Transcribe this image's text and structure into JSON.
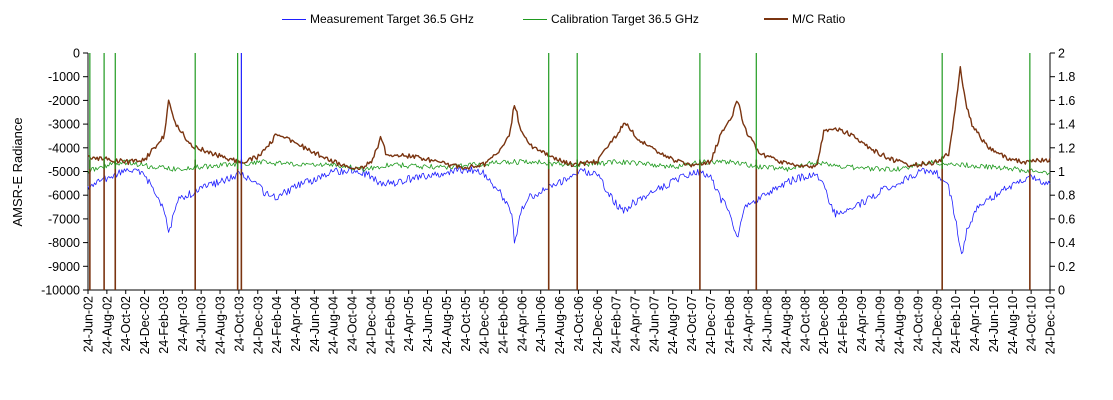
{
  "chart_data": {
    "type": "line",
    "title": "",
    "xlabel": "",
    "ylabel": "AMSR-E Radiance",
    "y2label": "",
    "ylim": [
      -10000,
      0
    ],
    "yticks": [
      0,
      -1000,
      -2000,
      -3000,
      -4000,
      -5000,
      -6000,
      -7000,
      -8000,
      -9000,
      -10000
    ],
    "ytick_labels": [
      "0",
      "-1000",
      "-2000",
      "-3000",
      "-4000",
      "-5000",
      "-6000",
      "-7000",
      "-8000",
      "-9000",
      "-10000"
    ],
    "y2lim": [
      0,
      2
    ],
    "y2ticks": [
      2,
      1.8,
      1.6,
      1.4,
      1.2,
      1,
      0.8,
      0.6,
      0.4,
      0.2,
      0
    ],
    "y2tick_labels": [
      "2",
      "1.8",
      "1.6",
      "1.4",
      "1.2",
      "1",
      "0.8",
      "0.6",
      "0.4",
      "0.2",
      "0"
    ],
    "x_start": "2002-06-24",
    "x_end": "2010-12-24",
    "xtick_labels": [
      "24-Jun-02",
      "24-Aug-02",
      "24-Oct-02",
      "24-Dec-02",
      "24-Feb-03",
      "24-Apr-03",
      "24-Jun-03",
      "24-Aug-03",
      "24-Oct-03",
      "24-Dec-03",
      "24-Feb-04",
      "24-Apr-04",
      "24-Jun-04",
      "24-Aug-04",
      "24-Oct-04",
      "24-Dec-04",
      "24-Feb-05",
      "24-Apr-05",
      "24-Jun-05",
      "24-Aug-05",
      "24-Oct-05",
      "24-Dec-05",
      "24-Feb-06",
      "24-Apr-06",
      "24-Jun-06",
      "24-Aug-06",
      "24-Oct-06",
      "24-Dec-06",
      "24-Feb-07",
      "24-Apr-07",
      "24-Jun-07",
      "24-Aug-07",
      "24-Oct-07",
      "24-Dec-07",
      "24-Feb-08",
      "24-Apr-08",
      "24-Jun-08",
      "24-Aug-08",
      "24-Oct-08",
      "24-Dec-08",
      "24-Feb-09",
      "24-Apr-09",
      "24-Jun-09",
      "24-Aug-09",
      "24-Oct-09",
      "24-Dec-09",
      "24-Feb-10",
      "24-Apr-10",
      "24-Jun-10",
      "24-Aug-10",
      "24-Oct-10",
      "24-Dec-10"
    ],
    "grid": false,
    "legend_position": "top-center",
    "series": [
      {
        "name": "Measurement Target 36.5 GHz",
        "axis": "left",
        "color": "#1f1fff",
        "points": [
          [
            "2002-06-24",
            -5700
          ],
          [
            "2002-08-01",
            -5400
          ],
          [
            "2002-09-15",
            -5200
          ],
          [
            "2002-11-01",
            -4900
          ],
          [
            "2002-12-15",
            -5100
          ],
          [
            "2003-01-15",
            -5600
          ],
          [
            "2003-02-10",
            -6200
          ],
          [
            "2003-03-01",
            -6900
          ],
          [
            "2003-03-12",
            -7750
          ],
          [
            "2003-03-25",
            -6800
          ],
          [
            "2003-04-15",
            -6100
          ],
          [
            "2003-06-01",
            -5900
          ],
          [
            "2003-07-15",
            -5600
          ],
          [
            "2003-09-01",
            -5400
          ],
          [
            "2003-10-24",
            -5100
          ],
          [
            "2003-12-01",
            -5300
          ],
          [
            "2004-01-15",
            -5900
          ],
          [
            "2004-02-15",
            -6100
          ],
          [
            "2004-03-20",
            -5900
          ],
          [
            "2004-05-01",
            -5600
          ],
          [
            "2004-07-01",
            -5300
          ],
          [
            "2004-09-01",
            -5000
          ],
          [
            "2004-11-01",
            -4900
          ],
          [
            "2004-12-24",
            -5200
          ],
          [
            "2005-01-24",
            -5500
          ],
          [
            "2005-03-01",
            -5500
          ],
          [
            "2005-05-01",
            -5300
          ],
          [
            "2005-07-01",
            -5200
          ],
          [
            "2005-09-01",
            -5000
          ],
          [
            "2005-11-01",
            -4900
          ],
          [
            "2005-12-24",
            -5100
          ],
          [
            "2006-02-01",
            -5700
          ],
          [
            "2006-03-01",
            -6200
          ],
          [
            "2006-03-24",
            -6800
          ],
          [
            "2006-04-01",
            -8250
          ],
          [
            "2006-04-15",
            -6900
          ],
          [
            "2006-05-15",
            -6100
          ],
          [
            "2006-07-01",
            -5800
          ],
          [
            "2006-09-01",
            -5400
          ],
          [
            "2006-11-01",
            -5000
          ],
          [
            "2006-12-24",
            -5100
          ],
          [
            "2007-01-24",
            -5800
          ],
          [
            "2007-02-24",
            -6400
          ],
          [
            "2007-03-20",
            -6700
          ],
          [
            "2007-04-20",
            -6300
          ],
          [
            "2007-06-01",
            -6000
          ],
          [
            "2007-08-01",
            -5600
          ],
          [
            "2007-10-01",
            -5200
          ],
          [
            "2007-11-24",
            -5000
          ],
          [
            "2007-12-24",
            -5200
          ],
          [
            "2008-01-24",
            -6100
          ],
          [
            "2008-02-24",
            -6700
          ],
          [
            "2008-03-20",
            -7800
          ],
          [
            "2008-04-10",
            -6600
          ],
          [
            "2008-05-24",
            -6200
          ],
          [
            "2008-07-24",
            -5700
          ],
          [
            "2008-09-24",
            -5300
          ],
          [
            "2008-11-24",
            -5100
          ],
          [
            "2008-12-24",
            -5400
          ],
          [
            "2009-01-10",
            -6300
          ],
          [
            "2009-02-01",
            -6800
          ],
          [
            "2009-03-15",
            -6600
          ],
          [
            "2009-05-01",
            -6300
          ],
          [
            "2009-07-01",
            -5800
          ],
          [
            "2009-09-01",
            -5400
          ],
          [
            "2009-11-01",
            -5000
          ],
          [
            "2009-12-24",
            -5100
          ],
          [
            "2010-02-01",
            -5700
          ],
          [
            "2010-03-01",
            -7500
          ],
          [
            "2010-03-15",
            -8600
          ],
          [
            "2010-04-01",
            -7400
          ],
          [
            "2010-05-01",
            -6600
          ],
          [
            "2010-07-01",
            -6000
          ],
          [
            "2010-09-01",
            -5500
          ],
          [
            "2010-11-01",
            -5200
          ],
          [
            "2010-12-24",
            -5600
          ]
        ]
      },
      {
        "name": "Calibration Target 36.5 GHz",
        "axis": "left",
        "color": "#1f9a1f",
        "points": [
          [
            "2002-06-24",
            -5000
          ],
          [
            "2002-09-01",
            -4700
          ],
          [
            "2002-11-01",
            -4600
          ],
          [
            "2003-01-15",
            -4800
          ],
          [
            "2003-04-01",
            -4900
          ],
          [
            "2003-07-01",
            -4800
          ],
          [
            "2003-10-01",
            -4700
          ],
          [
            "2004-01-01",
            -4600
          ],
          [
            "2004-04-01",
            -4700
          ],
          [
            "2004-07-01",
            -4700
          ],
          [
            "2004-10-01",
            -4800
          ],
          [
            "2004-12-01",
            -4900
          ],
          [
            "2005-03-01",
            -4700
          ],
          [
            "2005-06-01",
            -4800
          ],
          [
            "2005-09-01",
            -4800
          ],
          [
            "2005-12-01",
            -4700
          ],
          [
            "2006-03-01",
            -4600
          ],
          [
            "2006-06-01",
            -4600
          ],
          [
            "2006-09-01",
            -4700
          ],
          [
            "2006-12-01",
            -4700
          ],
          [
            "2007-03-01",
            -4600
          ],
          [
            "2007-06-01",
            -4700
          ],
          [
            "2007-09-01",
            -4800
          ],
          [
            "2007-12-01",
            -4600
          ],
          [
            "2008-03-01",
            -4600
          ],
          [
            "2008-06-01",
            -4800
          ],
          [
            "2008-09-01",
            -4900
          ],
          [
            "2008-12-01",
            -4600
          ],
          [
            "2009-03-01",
            -4800
          ],
          [
            "2009-06-01",
            -4900
          ],
          [
            "2009-09-01",
            -4900
          ],
          [
            "2009-12-01",
            -4600
          ],
          [
            "2010-03-01",
            -4700
          ],
          [
            "2010-06-01",
            -4800
          ],
          [
            "2010-09-01",
            -4900
          ],
          [
            "2010-12-24",
            -5100
          ]
        ]
      },
      {
        "name": "M/C Ratio",
        "axis": "right",
        "color": "#7a3410",
        "points": [
          [
            "2002-06-24",
            1.12
          ],
          [
            "2002-09-01",
            1.1
          ],
          [
            "2002-11-01",
            1.08
          ],
          [
            "2002-12-24",
            1.1
          ],
          [
            "2003-01-24",
            1.2
          ],
          [
            "2003-02-24",
            1.3
          ],
          [
            "2003-03-12",
            1.6
          ],
          [
            "2003-04-01",
            1.4
          ],
          [
            "2003-05-24",
            1.22
          ],
          [
            "2003-08-01",
            1.15
          ],
          [
            "2003-10-24",
            1.08
          ],
          [
            "2003-12-24",
            1.12
          ],
          [
            "2004-01-24",
            1.2
          ],
          [
            "2004-02-24",
            1.32
          ],
          [
            "2004-03-24",
            1.28
          ],
          [
            "2004-05-24",
            1.2
          ],
          [
            "2004-07-24",
            1.12
          ],
          [
            "2004-09-24",
            1.05
          ],
          [
            "2004-11-24",
            1.03
          ],
          [
            "2004-12-24",
            1.08
          ],
          [
            "2005-01-10",
            1.18
          ],
          [
            "2005-01-24",
            1.29
          ],
          [
            "2005-02-10",
            1.15
          ],
          [
            "2005-04-24",
            1.13
          ],
          [
            "2005-06-24",
            1.1
          ],
          [
            "2005-08-24",
            1.06
          ],
          [
            "2005-10-24",
            1.03
          ],
          [
            "2005-12-24",
            1.06
          ],
          [
            "2006-02-01",
            1.15
          ],
          [
            "2006-03-15",
            1.3
          ],
          [
            "2006-04-01",
            1.58
          ],
          [
            "2006-04-20",
            1.35
          ],
          [
            "2006-06-01",
            1.2
          ],
          [
            "2006-08-01",
            1.12
          ],
          [
            "2006-10-01",
            1.06
          ],
          [
            "2006-12-24",
            1.08
          ],
          [
            "2007-01-24",
            1.2
          ],
          [
            "2007-02-24",
            1.3
          ],
          [
            "2007-03-24",
            1.42
          ],
          [
            "2007-04-24",
            1.3
          ],
          [
            "2007-06-24",
            1.18
          ],
          [
            "2007-08-24",
            1.1
          ],
          [
            "2007-10-24",
            1.05
          ],
          [
            "2007-12-24",
            1.08
          ],
          [
            "2008-01-24",
            1.3
          ],
          [
            "2008-03-01",
            1.45
          ],
          [
            "2008-03-20",
            1.6
          ],
          [
            "2008-04-15",
            1.35
          ],
          [
            "2008-06-01",
            1.15
          ],
          [
            "2008-08-01",
            1.09
          ],
          [
            "2008-10-01",
            1.04
          ],
          [
            "2008-12-01",
            1.05
          ],
          [
            "2008-12-24",
            1.33
          ],
          [
            "2009-02-01",
            1.36
          ],
          [
            "2009-04-01",
            1.3
          ],
          [
            "2009-06-01",
            1.18
          ],
          [
            "2009-08-01",
            1.1
          ],
          [
            "2009-10-01",
            1.05
          ],
          [
            "2009-12-24",
            1.08
          ],
          [
            "2010-02-01",
            1.15
          ],
          [
            "2010-03-10",
            1.88
          ],
          [
            "2010-03-25",
            1.6
          ],
          [
            "2010-04-15",
            1.4
          ],
          [
            "2010-06-01",
            1.22
          ],
          [
            "2010-08-01",
            1.12
          ],
          [
            "2010-10-01",
            1.08
          ],
          [
            "2010-12-24",
            1.1
          ]
        ]
      }
    ],
    "spikes": [
      {
        "date": "2002-06-30",
        "series": "M/C Ratio",
        "kind": "drop",
        "value": 0
      },
      {
        "date": "2002-08-15",
        "series": "M/C Ratio",
        "kind": "drop",
        "value": 0
      },
      {
        "date": "2002-09-20",
        "series": "M/C Ratio",
        "kind": "drop",
        "value": 0
      },
      {
        "date": "2003-06-05",
        "series": "M/C Ratio",
        "kind": "drop",
        "value": 0
      },
      {
        "date": "2003-10-20",
        "series": "M/C Ratio",
        "kind": "drop",
        "value": 0
      },
      {
        "date": "2003-11-01",
        "series": "M/C Ratio",
        "kind": "drop",
        "value": 0
      },
      {
        "date": "2006-07-20",
        "series": "M/C Ratio",
        "kind": "drop",
        "value": 0
      },
      {
        "date": "2006-10-20",
        "series": "M/C Ratio",
        "kind": "drop",
        "value": 0
      },
      {
        "date": "2007-11-20",
        "series": "M/C Ratio",
        "kind": "drop",
        "value": 0
      },
      {
        "date": "2008-05-20",
        "series": "M/C Ratio",
        "kind": "drop",
        "value": 0
      },
      {
        "date": "2010-01-10",
        "series": "M/C Ratio",
        "kind": "drop",
        "value": 0
      },
      {
        "date": "2010-10-20",
        "series": "M/C Ratio",
        "kind": "drop",
        "value": 0
      },
      {
        "date": "2002-06-30",
        "series": "Calibration Target 36.5 GHz",
        "kind": "rise",
        "value": 0
      },
      {
        "date": "2002-08-15",
        "series": "Calibration Target 36.5 GHz",
        "kind": "rise",
        "value": 0
      },
      {
        "date": "2002-09-20",
        "series": "Calibration Target 36.5 GHz",
        "kind": "rise",
        "value": 0
      },
      {
        "date": "2003-06-05",
        "series": "Calibration Target 36.5 GHz",
        "kind": "rise",
        "value": 0
      },
      {
        "date": "2003-10-20",
        "series": "Calibration Target 36.5 GHz",
        "kind": "rise",
        "value": 0
      },
      {
        "date": "2003-11-01",
        "series": "Measurement Target 36.5 GHz",
        "kind": "rise",
        "value": 0
      },
      {
        "date": "2006-07-20",
        "series": "Calibration Target 36.5 GHz",
        "kind": "rise",
        "value": 0
      },
      {
        "date": "2006-10-20",
        "series": "Calibration Target 36.5 GHz",
        "kind": "rise",
        "value": 0
      },
      {
        "date": "2007-11-20",
        "series": "Calibration Target 36.5 GHz",
        "kind": "rise",
        "value": 0
      },
      {
        "date": "2008-05-20",
        "series": "Calibration Target 36.5 GHz",
        "kind": "rise",
        "value": 0
      },
      {
        "date": "2010-01-10",
        "series": "Calibration Target 36.5 GHz",
        "kind": "rise",
        "value": 0
      },
      {
        "date": "2010-10-20",
        "series": "Calibration Target 36.5 GHz",
        "kind": "rise",
        "value": 0
      }
    ]
  }
}
